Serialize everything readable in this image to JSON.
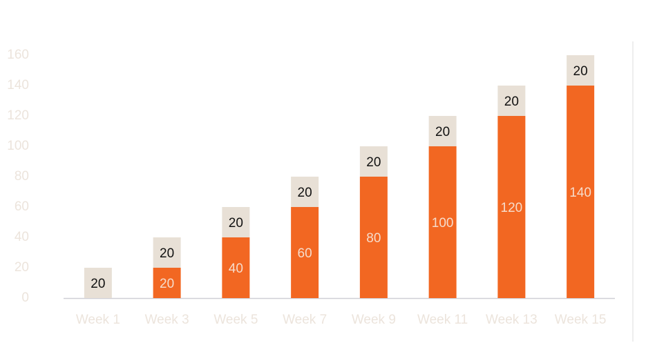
{
  "chart_data": {
    "type": "stacked_bar",
    "categories": [
      "Week 1",
      "Week 3",
      "Week 5",
      "Week 7",
      "Week 9",
      "Week 11",
      "Week 13",
      "Week 15"
    ],
    "series": [
      {
        "color": "#f26722",
        "label_color": "#f6dccb",
        "values": [
          0,
          20,
          40,
          60,
          80,
          100,
          120,
          140
        ]
      },
      {
        "color": "#e8e0d6",
        "label_color": "#111111",
        "values": [
          20,
          20,
          20,
          20,
          20,
          20,
          20,
          20
        ]
      }
    ],
    "ylim": [
      0,
      160
    ],
    "yticks": [
      0,
      20,
      40,
      60,
      80,
      100,
      120,
      140,
      160
    ],
    "grid": false
  }
}
